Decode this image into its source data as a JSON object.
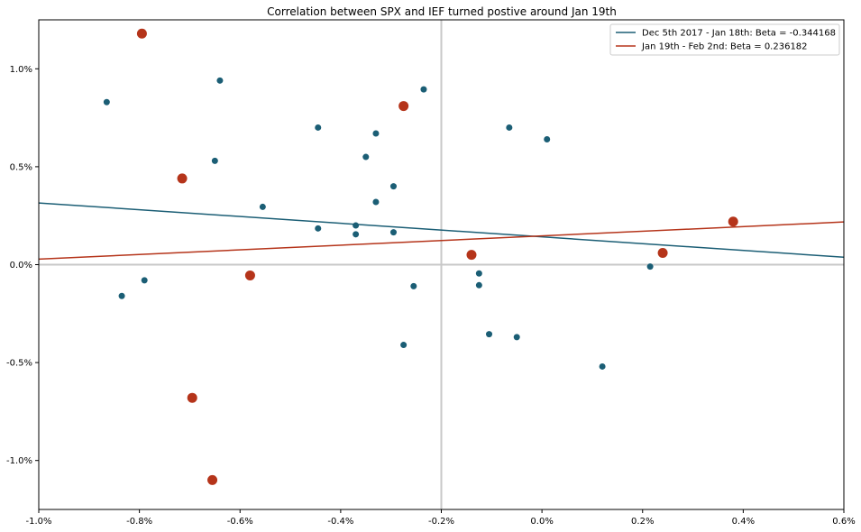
{
  "chart_data": {
    "type": "scatter",
    "title": "Correlation between SPX and IEF turned postive around Jan 19th",
    "xlabel": "",
    "ylabel": "",
    "xlim": [
      -1.0,
      0.6
    ],
    "ylim": [
      -1.25,
      1.25
    ],
    "x_ticks": [
      -1.0,
      -0.8,
      -0.6,
      -0.4,
      -0.2,
      0.0,
      0.2,
      0.4,
      0.6
    ],
    "x_tick_labels": [
      "-1.0%",
      "-0.8%",
      "-0.6%",
      "-0.4%",
      "-0.2%",
      "0.0%",
      "0.2%",
      "0.4%",
      "0.6%"
    ],
    "y_ticks": [
      1.0,
      0.5,
      0.0,
      -0.5,
      -1.0
    ],
    "y_tick_labels": [
      "1.0%",
      "0.5%",
      "0.0%",
      "-0.5%",
      "-1.0%"
    ],
    "reference_lines": {
      "x": -0.2,
      "y": 0.0,
      "color": "#c8c8c8"
    },
    "grid": false,
    "legend_position": "top-right",
    "series": [
      {
        "name": "Dec 5th 2017 - Jan 18th: Beta = -0.344168",
        "color": "#1b5e75",
        "marker_size": "small",
        "points": [
          [
            -0.865,
            0.83
          ],
          [
            -0.64,
            0.94
          ],
          [
            -0.65,
            0.53
          ],
          [
            -0.835,
            -0.16
          ],
          [
            -0.79,
            -0.08
          ],
          [
            -0.555,
            0.295
          ],
          [
            -0.445,
            0.7
          ],
          [
            -0.445,
            0.185
          ],
          [
            -0.37,
            0.2
          ],
          [
            -0.37,
            0.155
          ],
          [
            -0.35,
            0.55
          ],
          [
            -0.33,
            0.67
          ],
          [
            -0.33,
            0.32
          ],
          [
            -0.295,
            0.4
          ],
          [
            -0.295,
            0.165
          ],
          [
            -0.275,
            -0.41
          ],
          [
            -0.255,
            -0.11
          ],
          [
            -0.235,
            0.895
          ],
          [
            -0.125,
            -0.045
          ],
          [
            -0.125,
            -0.105
          ],
          [
            -0.105,
            -0.355
          ],
          [
            -0.065,
            0.7
          ],
          [
            -0.05,
            -0.37
          ],
          [
            0.01,
            0.64
          ],
          [
            0.12,
            -0.52
          ],
          [
            0.215,
            -0.01
          ]
        ],
        "fit_line": {
          "x": [
            -1.0,
            0.6
          ],
          "y": [
            0.315,
            0.038
          ]
        }
      },
      {
        "name": "Jan 19th - Feb 2nd: Beta = 0.236182",
        "color": "#b5341a",
        "marker_size": "large",
        "points": [
          [
            -0.795,
            1.18
          ],
          [
            -0.715,
            0.44
          ],
          [
            -0.695,
            -0.68
          ],
          [
            -0.655,
            -1.1
          ],
          [
            -0.58,
            -0.055
          ],
          [
            -0.275,
            0.81
          ],
          [
            -0.14,
            0.05
          ],
          [
            0.24,
            0.06
          ],
          [
            0.38,
            0.22
          ]
        ],
        "fit_line": {
          "x": [
            -1.0,
            0.6
          ],
          "y": [
            0.028,
            0.218
          ]
        }
      }
    ]
  }
}
